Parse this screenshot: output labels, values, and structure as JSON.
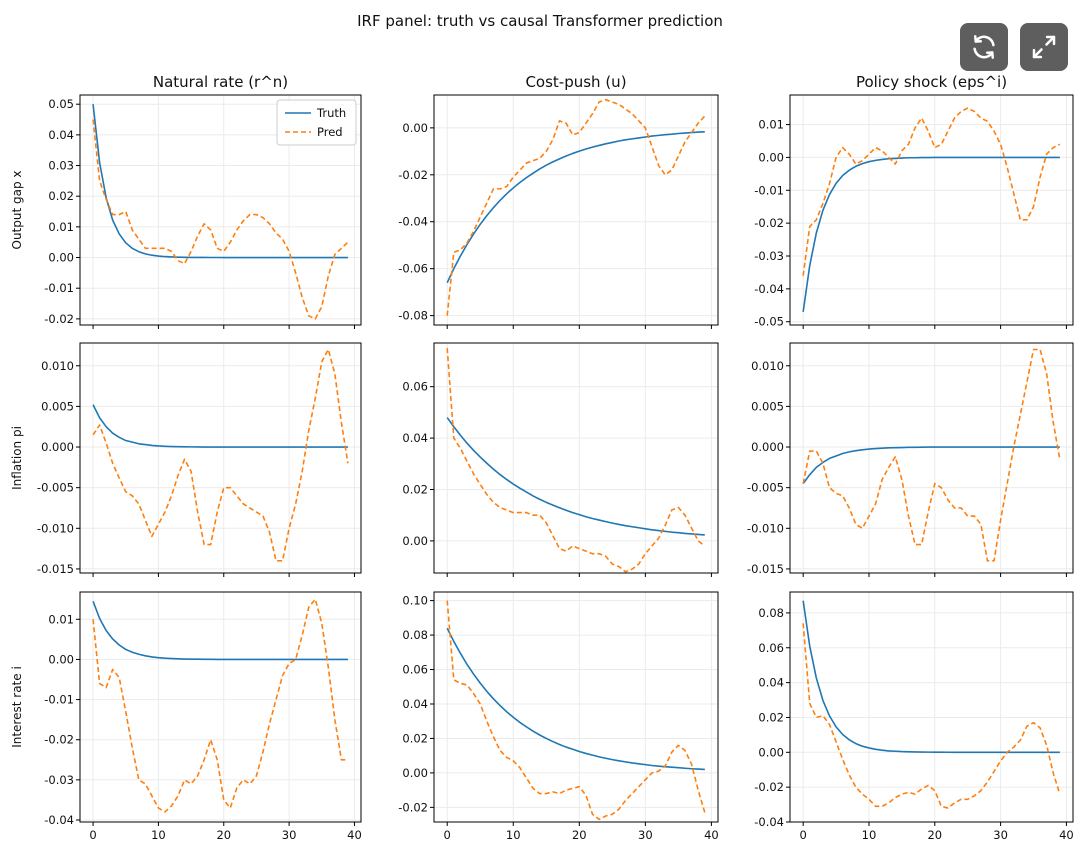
{
  "chart_data": {
    "type": "line",
    "title": "IRF panel: truth vs causal Transformer prediction",
    "column_titles": [
      "Natural rate (r^n)",
      "Cost-push (u)",
      "Policy shock (eps^i)"
    ],
    "row_labels": [
      "Output gap x",
      "Inflation pi",
      "Interest rate i"
    ],
    "legend": {
      "entries": [
        "Truth",
        "Pred"
      ],
      "placement": "top-right",
      "panel": [
        0,
        0
      ]
    },
    "series_styles": {
      "Truth": {
        "color": "#1f77b4",
        "dash": "solid"
      },
      "Pred": {
        "color": "#ff7f0e",
        "dash": "dashed"
      }
    },
    "x": [
      0,
      1,
      2,
      3,
      4,
      5,
      6,
      7,
      8,
      9,
      10,
      11,
      12,
      13,
      14,
      15,
      16,
      17,
      18,
      19,
      20,
      21,
      22,
      23,
      24,
      25,
      26,
      27,
      28,
      29,
      30,
      31,
      32,
      33,
      34,
      35,
      36,
      37,
      38,
      39
    ],
    "xlim": [
      -2,
      41
    ],
    "xticks": [
      0,
      10,
      20,
      30,
      40
    ],
    "panels": [
      [
        {
          "ylim": [
            -0.022,
            0.053
          ],
          "yticks": [
            -0.02,
            -0.01,
            0.0,
            0.01,
            0.02,
            0.03,
            0.04,
            0.05
          ],
          "ytick_labels": [
            "-0.02",
            "-0.01",
            "0.00",
            "0.01",
            "0.02",
            "0.03",
            "0.04",
            "0.05"
          ],
          "truth": [
            0.05,
            0.031,
            0.0195,
            0.0122,
            0.0077,
            0.0048,
            0.003,
            0.0019,
            0.0012,
            0.00075,
            0.00047,
            0.0003,
            0.00019,
            0.00012,
            7e-05,
            4e-05,
            3e-05,
            2e-05,
            1e-05,
            1e-05,
            0,
            0,
            0,
            0,
            0,
            0,
            0,
            0,
            0,
            0,
            0,
            0,
            0,
            0,
            0,
            0,
            0,
            0,
            0,
            0
          ],
          "pred": [
            0.045,
            0.025,
            0.019,
            0.014,
            0.014,
            0.015,
            0.009,
            0.006,
            0.003,
            0.003,
            0.003,
            0.003,
            0.002,
            -0.001,
            -0.002,
            0.002,
            0.007,
            0.011,
            0.009,
            0.003,
            0.002,
            0.005,
            0.009,
            0.012,
            0.014,
            0.014,
            0.013,
            0.011,
            0.008,
            0.006,
            0.002,
            -0.005,
            -0.013,
            -0.019,
            -0.02,
            -0.016,
            -0.006,
            0.001,
            0.003,
            0.005
          ]
        },
        {
          "ylim": [
            -0.084,
            0.014
          ],
          "yticks": [
            -0.08,
            -0.06,
            -0.04,
            -0.02,
            0.0
          ],
          "ytick_labels": [
            "-0.08",
            "-0.06",
            "-0.04",
            "-0.02",
            "0.00"
          ],
          "truth": [
            -0.066,
            -0.06,
            -0.0546,
            -0.0497,
            -0.0452,
            -0.0411,
            -0.0374,
            -0.034,
            -0.0309,
            -0.0281,
            -0.0256,
            -0.0233,
            -0.0212,
            -0.0193,
            -0.0175,
            -0.0159,
            -0.0145,
            -0.0132,
            -0.012,
            -0.0109,
            -0.0099,
            -0.009,
            -0.0082,
            -0.0075,
            -0.0068,
            -0.0062,
            -0.0056,
            -0.0051,
            -0.0047,
            -0.0043,
            -0.0039,
            -0.0035,
            -0.0032,
            -0.0029,
            -0.0027,
            -0.0024,
            -0.0022,
            -0.002,
            -0.0018,
            -0.0017
          ],
          "pred": [
            -0.08,
            -0.053,
            -0.052,
            -0.049,
            -0.044,
            -0.038,
            -0.032,
            -0.026,
            -0.026,
            -0.025,
            -0.021,
            -0.018,
            -0.015,
            -0.014,
            -0.013,
            -0.01,
            -0.005,
            0.003,
            0.002,
            -0.003,
            -0.002,
            0.002,
            0.006,
            0.011,
            0.012,
            0.011,
            0.01,
            0.008,
            0.006,
            0.003,
            0.0,
            -0.008,
            -0.016,
            -0.02,
            -0.018,
            -0.012,
            -0.006,
            -0.002,
            0.002,
            0.005
          ]
        },
        {
          "ylim": [
            -0.051,
            0.019
          ],
          "yticks": [
            -0.05,
            -0.04,
            -0.03,
            -0.02,
            -0.01,
            0.0,
            0.01
          ],
          "ytick_labels": [
            "-0.05",
            "-0.04",
            "-0.03",
            "-0.02",
            "-0.01",
            "0.00",
            "0.01"
          ],
          "truth": [
            -0.047,
            -0.0329,
            -0.023,
            -0.0161,
            -0.0113,
            -0.0079,
            -0.0055,
            -0.0039,
            -0.0027,
            -0.0019,
            -0.0013,
            -0.0009,
            -0.0006,
            -0.0004,
            -0.0003,
            -0.0002,
            -0.0001,
            -0.0001,
            -5e-05,
            -3e-05,
            0,
            0,
            0,
            0,
            0,
            0,
            0,
            0,
            0,
            0,
            0,
            0,
            0,
            0,
            0,
            0,
            0,
            0,
            0,
            0
          ],
          "pred": [
            -0.036,
            -0.021,
            -0.019,
            -0.014,
            -0.008,
            0.0,
            0.003,
            0.001,
            -0.002,
            -0.001,
            0.001,
            0.003,
            0.002,
            0.0,
            -0.002,
            0.002,
            0.004,
            0.009,
            0.012,
            0.008,
            0.003,
            0.004,
            0.008,
            0.012,
            0.014,
            0.015,
            0.014,
            0.012,
            0.011,
            0.008,
            0.004,
            -0.003,
            -0.011,
            -0.019,
            -0.019,
            -0.015,
            -0.006,
            0.001,
            0.003,
            0.004
          ]
        }
      ],
      [
        {
          "ylim": [
            -0.0155,
            0.0128
          ],
          "yticks": [
            -0.015,
            -0.01,
            -0.005,
            0.0,
            0.005,
            0.01
          ],
          "ytick_labels": [
            "-0.015",
            "-0.010",
            "-0.005",
            "0.000",
            "0.005",
            "0.010"
          ],
          "truth": [
            0.0052,
            0.0036,
            0.0025,
            0.0017,
            0.0012,
            0.0008,
            0.0006,
            0.0004,
            0.0003,
            0.0002,
            0.00013,
            9e-05,
            6e-05,
            4e-05,
            3e-05,
            2e-05,
            1e-05,
            0,
            0,
            0,
            0,
            0,
            0,
            0,
            0,
            0,
            0,
            0,
            0,
            0,
            0,
            0,
            0,
            0,
            0,
            0,
            0,
            0,
            0,
            0
          ],
          "pred": [
            0.0015,
            0.0027,
            0.0005,
            -0.002,
            -0.0038,
            -0.0055,
            -0.006,
            -0.007,
            -0.009,
            -0.011,
            -0.0095,
            -0.008,
            -0.006,
            -0.0035,
            -0.0015,
            -0.003,
            -0.008,
            -0.012,
            -0.012,
            -0.008,
            -0.005,
            -0.005,
            -0.006,
            -0.007,
            -0.0075,
            -0.008,
            -0.0085,
            -0.0105,
            -0.014,
            -0.014,
            -0.01,
            -0.007,
            -0.003,
            0.002,
            0.006,
            0.0105,
            0.012,
            0.009,
            0.003,
            -0.002
          ]
        },
        {
          "ylim": [
            -0.0125,
            0.077
          ],
          "yticks": [
            0.0,
            0.02,
            0.04,
            0.06
          ],
          "ytick_labels": [
            "0.00",
            "0.02",
            "0.04",
            "0.06"
          ],
          "truth": [
            0.048,
            0.0444,
            0.0411,
            0.038,
            0.0352,
            0.0326,
            0.0302,
            0.0279,
            0.0258,
            0.0239,
            0.0221,
            0.0205,
            0.019,
            0.0175,
            0.0162,
            0.015,
            0.0139,
            0.0129,
            0.0119,
            0.011,
            0.0102,
            0.0094,
            0.0087,
            0.0081,
            0.0075,
            0.0069,
            0.0064,
            0.0059,
            0.0055,
            0.0051,
            0.0047,
            0.0043,
            0.004,
            0.0037,
            0.0034,
            0.0032,
            0.0029,
            0.0027,
            0.0025,
            0.0023
          ],
          "pred": [
            0.075,
            0.04,
            0.036,
            0.031,
            0.026,
            0.022,
            0.018,
            0.015,
            0.013,
            0.012,
            0.011,
            0.011,
            0.011,
            0.01,
            0.01,
            0.007,
            0.002,
            -0.003,
            -0.004,
            -0.002,
            -0.003,
            -0.004,
            -0.005,
            -0.005,
            -0.006,
            -0.009,
            -0.01,
            -0.012,
            -0.011,
            -0.009,
            -0.005,
            -0.002,
            0.001,
            0.006,
            0.012,
            0.013,
            0.01,
            0.005,
            0.0,
            -0.002
          ]
        },
        {
          "ylim": [
            -0.0155,
            0.0128
          ],
          "yticks": [
            -0.015,
            -0.01,
            -0.005,
            0.0,
            0.005,
            0.01
          ],
          "ytick_labels": [
            "-0.015",
            "-0.010",
            "-0.005",
            "0.000",
            "0.005",
            "0.010"
          ],
          "truth": [
            -0.0045,
            -0.0034,
            -0.0025,
            -0.0019,
            -0.0014,
            -0.0011,
            -0.0008,
            -0.0006,
            -0.00045,
            -0.00034,
            -0.00025,
            -0.00019,
            -0.00014,
            -0.0001,
            -8e-05,
            -6e-05,
            -4e-05,
            -3e-05,
            -2e-05,
            -1e-05,
            0,
            0,
            0,
            0,
            0,
            0,
            0,
            0,
            0,
            0,
            0,
            0,
            0,
            0,
            0,
            0,
            0,
            0,
            0,
            0
          ],
          "pred": [
            -0.0045,
            -0.0005,
            -0.0005,
            -0.002,
            -0.005,
            -0.0057,
            -0.006,
            -0.0075,
            -0.0095,
            -0.01,
            -0.0085,
            -0.007,
            -0.004,
            -0.0025,
            -0.0012,
            -0.004,
            -0.0085,
            -0.012,
            -0.012,
            -0.008,
            -0.0045,
            -0.005,
            -0.0065,
            -0.0075,
            -0.0075,
            -0.0085,
            -0.0085,
            -0.0095,
            -0.014,
            -0.014,
            -0.009,
            -0.0045,
            0.0,
            0.004,
            0.008,
            0.012,
            0.012,
            0.009,
            0.003,
            -0.0015
          ]
        }
      ],
      [
        {
          "ylim": [
            -0.0405,
            0.0168
          ],
          "yticks": [
            -0.04,
            -0.03,
            -0.02,
            -0.01,
            0.0,
            0.01
          ],
          "ytick_labels": [
            "-0.04",
            "-0.03",
            "-0.02",
            "-0.01",
            "0.00",
            "0.01"
          ],
          "truth": [
            0.0145,
            0.0102,
            0.0072,
            0.0051,
            0.0036,
            0.0025,
            0.0018,
            0.0013,
            0.0009,
            0.00063,
            0.00044,
            0.00031,
            0.00022,
            0.00015,
            0.0001,
            7e-05,
            5e-05,
            3e-05,
            2e-05,
            1e-05,
            0,
            0,
            0,
            0,
            0,
            0,
            0,
            0,
            0,
            0,
            0,
            0,
            0,
            0,
            0,
            0,
            0,
            0,
            0,
            0
          ],
          "pred": [
            0.01,
            -0.006,
            -0.007,
            -0.0025,
            -0.0045,
            -0.013,
            -0.022,
            -0.03,
            -0.031,
            -0.034,
            -0.037,
            -0.038,
            -0.0365,
            -0.034,
            -0.03,
            -0.031,
            -0.029,
            -0.025,
            -0.02,
            -0.025,
            -0.035,
            -0.037,
            -0.032,
            -0.03,
            -0.031,
            -0.029,
            -0.023,
            -0.016,
            -0.01,
            -0.004,
            -0.001,
            0.0,
            0.006,
            0.013,
            0.015,
            0.009,
            -0.002,
            -0.015,
            -0.025,
            -0.025
          ]
        },
        {
          "ylim": [
            -0.0285,
            0.105
          ],
          "yticks": [
            -0.02,
            0.0,
            0.02,
            0.04,
            0.06,
            0.08,
            0.1
          ],
          "ytick_labels": [
            "-0.02",
            "0.00",
            "0.02",
            "0.04",
            "0.06",
            "0.08",
            "0.10"
          ],
          "truth": [
            0.084,
            0.0763,
            0.0694,
            0.063,
            0.0573,
            0.0521,
            0.0473,
            0.043,
            0.0391,
            0.0355,
            0.0323,
            0.0293,
            0.0267,
            0.0242,
            0.022,
            0.02,
            0.0182,
            0.0165,
            0.015,
            0.0137,
            0.0124,
            0.0113,
            0.0103,
            0.0093,
            0.0085,
            0.0077,
            0.007,
            0.0064,
            0.0058,
            0.0053,
            0.0048,
            0.0043,
            0.0039,
            0.0036,
            0.0033,
            0.003,
            0.0027,
            0.0024,
            0.0022,
            0.002
          ],
          "pred": [
            0.1,
            0.054,
            0.052,
            0.051,
            0.046,
            0.04,
            0.03,
            0.021,
            0.013,
            0.009,
            0.007,
            0.003,
            -0.003,
            -0.009,
            -0.012,
            -0.012,
            -0.011,
            -0.012,
            -0.01,
            -0.009,
            -0.008,
            -0.013,
            -0.024,
            -0.027,
            -0.025,
            -0.024,
            -0.021,
            -0.016,
            -0.012,
            -0.008,
            -0.004,
            0.0,
            0.001,
            0.004,
            0.012,
            0.016,
            0.013,
            0.005,
            -0.01,
            -0.023
          ]
        },
        {
          "ylim": [
            -0.04,
            0.092
          ],
          "yticks": [
            -0.04,
            -0.02,
            0.0,
            0.02,
            0.04,
            0.06,
            0.08
          ],
          "ytick_labels": [
            "-0.04",
            "-0.02",
            "0.00",
            "0.02",
            "0.04",
            "0.06",
            "0.08"
          ],
          "truth": [
            0.087,
            0.0609,
            0.0426,
            0.0298,
            0.0209,
            0.0146,
            0.0102,
            0.0072,
            0.005,
            0.0035,
            0.0025,
            0.0017,
            0.0012,
            0.0008,
            0.0006,
            0.0004,
            0.0003,
            0.0002,
            0.00014,
            0.0001,
            7e-05,
            5e-05,
            3e-05,
            2e-05,
            1e-05,
            0,
            0,
            0,
            0,
            0,
            0,
            0,
            0,
            0,
            0,
            0,
            0,
            0,
            0,
            0
          ],
          "pred": [
            0.074,
            0.028,
            0.02,
            0.021,
            0.016,
            0.006,
            -0.004,
            -0.013,
            -0.02,
            -0.024,
            -0.027,
            -0.031,
            -0.031,
            -0.029,
            -0.026,
            -0.024,
            -0.023,
            -0.024,
            -0.021,
            -0.019,
            -0.022,
            -0.031,
            -0.032,
            -0.029,
            -0.027,
            -0.027,
            -0.025,
            -0.022,
            -0.017,
            -0.011,
            -0.005,
            0.0,
            0.003,
            0.007,
            0.015,
            0.017,
            0.014,
            0.004,
            -0.012,
            -0.024
          ]
        }
      ]
    ]
  },
  "toolbar": {
    "buttons": [
      {
        "name": "refresh",
        "icon": "refresh-icon"
      },
      {
        "name": "expand",
        "icon": "expand-icon"
      }
    ]
  }
}
